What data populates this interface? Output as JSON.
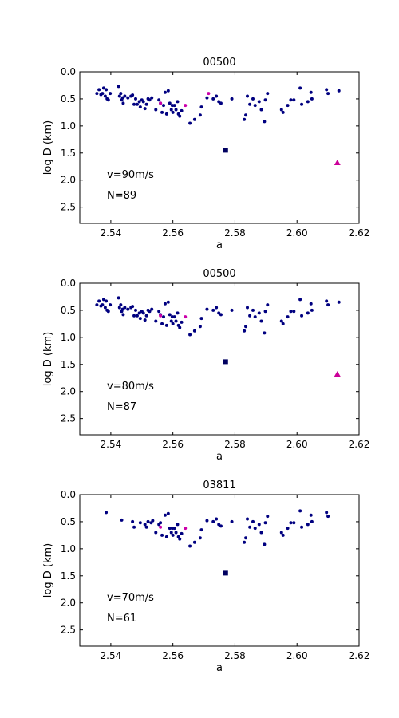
{
  "chart_data": [
    {
      "type": "scatter",
      "title": "00500",
      "xlabel": "a",
      "ylabel": "log D (km)",
      "xlim": [
        2.53,
        2.62
      ],
      "ylim": [
        0.0,
        2.8
      ],
      "y_inverted": true,
      "xticks": [
        "2.54",
        "2.56",
        "2.58",
        "2.60",
        "2.62"
      ],
      "yticks": [
        "0.0",
        "0.5",
        "1.0",
        "1.5",
        "2.0",
        "2.5"
      ],
      "annotations": [
        "v=90m/s",
        "N=89"
      ],
      "colors": {
        "members": "#000080",
        "highlight": "#cc00aa",
        "parent": "#000060",
        "outlier": "#cc0099"
      },
      "members": [
        [
          2.5355,
          0.4
        ],
        [
          2.5362,
          0.33
        ],
        [
          2.5368,
          0.42
        ],
        [
          2.5373,
          0.4
        ],
        [
          2.5377,
          0.3
        ],
        [
          2.5382,
          0.45
        ],
        [
          2.5385,
          0.33
        ],
        [
          2.5388,
          0.5
        ],
        [
          2.5392,
          0.52
        ],
        [
          2.5398,
          0.4
        ],
        [
          2.5425,
          0.27
        ],
        [
          2.5428,
          0.45
        ],
        [
          2.5432,
          0.4
        ],
        [
          2.5435,
          0.52
        ],
        [
          2.5438,
          0.48
        ],
        [
          2.544,
          0.58
        ],
        [
          2.5445,
          0.45
        ],
        [
          2.5455,
          0.48
        ],
        [
          2.5465,
          0.45
        ],
        [
          2.547,
          0.43
        ],
        [
          2.5475,
          0.6
        ],
        [
          2.548,
          0.5
        ],
        [
          2.5485,
          0.6
        ],
        [
          2.5492,
          0.55
        ],
        [
          2.5495,
          0.65
        ],
        [
          2.55,
          0.52
        ],
        [
          2.5505,
          0.55
        ],
        [
          2.551,
          0.68
        ],
        [
          2.5515,
          0.6
        ],
        [
          2.552,
          0.5
        ],
        [
          2.5525,
          0.52
        ],
        [
          2.5532,
          0.48
        ],
        [
          2.5545,
          0.7
        ],
        [
          2.5555,
          0.52
        ],
        [
          2.556,
          0.58
        ],
        [
          2.5565,
          0.75
        ],
        [
          2.557,
          0.62
        ],
        [
          2.5575,
          0.38
        ],
        [
          2.558,
          0.78
        ],
        [
          2.5585,
          0.35
        ],
        [
          2.559,
          0.58
        ],
        [
          2.5595,
          0.7
        ],
        [
          2.5598,
          0.62
        ],
        [
          2.56,
          0.75
        ],
        [
          2.5605,
          0.62
        ],
        [
          2.561,
          0.7
        ],
        [
          2.5615,
          0.55
        ],
        [
          2.5618,
          0.78
        ],
        [
          2.5622,
          0.82
        ],
        [
          2.5628,
          0.72
        ],
        [
          2.5655,
          0.95
        ],
        [
          2.567,
          0.88
        ],
        [
          2.5688,
          0.8
        ],
        [
          2.5692,
          0.65
        ],
        [
          2.571,
          0.48
        ],
        [
          2.573,
          0.5
        ],
        [
          2.574,
          0.45
        ],
        [
          2.5748,
          0.55
        ],
        [
          2.5755,
          0.58
        ],
        [
          2.579,
          0.5
        ],
        [
          2.583,
          0.88
        ],
        [
          2.5835,
          0.8
        ],
        [
          2.584,
          0.45
        ],
        [
          2.5848,
          0.6
        ],
        [
          2.5858,
          0.5
        ],
        [
          2.5865,
          0.62
        ],
        [
          2.5878,
          0.55
        ],
        [
          2.5885,
          0.7
        ],
        [
          2.5895,
          0.92
        ],
        [
          2.5898,
          0.52
        ],
        [
          2.5905,
          0.4
        ],
        [
          2.595,
          0.7
        ],
        [
          2.5955,
          0.75
        ],
        [
          2.597,
          0.62
        ],
        [
          2.598,
          0.52
        ],
        [
          2.599,
          0.52
        ],
        [
          2.601,
          0.3
        ],
        [
          2.6015,
          0.6
        ],
        [
          2.6035,
          0.55
        ],
        [
          2.6045,
          0.38
        ],
        [
          2.6048,
          0.5
        ],
        [
          2.6095,
          0.33
        ],
        [
          2.61,
          0.4
        ],
        [
          2.6135,
          0.35
        ]
      ],
      "highlights": [
        [
          2.556,
          0.58
        ],
        [
          2.564,
          0.62
        ],
        [
          2.5715,
          0.4
        ]
      ],
      "parent": [
        2.577,
        1.45
      ],
      "outlier": [
        2.613,
        1.68
      ]
    },
    {
      "type": "scatter",
      "title": "00500",
      "xlabel": "a",
      "ylabel": "log D (km)",
      "xlim": [
        2.53,
        2.62
      ],
      "ylim": [
        0.0,
        2.8
      ],
      "y_inverted": true,
      "xticks": [
        "2.54",
        "2.56",
        "2.58",
        "2.60",
        "2.62"
      ],
      "yticks": [
        "0.0",
        "0.5",
        "1.0",
        "1.5",
        "2.0",
        "2.5"
      ],
      "annotations": [
        "v=80m/s",
        "N=87"
      ],
      "colors": {
        "members": "#000080",
        "highlight": "#cc00aa",
        "parent": "#000060",
        "outlier": "#cc0099"
      },
      "members": [
        [
          2.5355,
          0.4
        ],
        [
          2.5362,
          0.33
        ],
        [
          2.5368,
          0.42
        ],
        [
          2.5373,
          0.4
        ],
        [
          2.5377,
          0.3
        ],
        [
          2.5382,
          0.45
        ],
        [
          2.5385,
          0.33
        ],
        [
          2.5388,
          0.5
        ],
        [
          2.5392,
          0.52
        ],
        [
          2.5398,
          0.4
        ],
        [
          2.5425,
          0.27
        ],
        [
          2.5428,
          0.45
        ],
        [
          2.5432,
          0.4
        ],
        [
          2.5435,
          0.52
        ],
        [
          2.5438,
          0.48
        ],
        [
          2.544,
          0.58
        ],
        [
          2.5445,
          0.45
        ],
        [
          2.5455,
          0.48
        ],
        [
          2.5465,
          0.45
        ],
        [
          2.547,
          0.43
        ],
        [
          2.5475,
          0.6
        ],
        [
          2.548,
          0.5
        ],
        [
          2.5485,
          0.6
        ],
        [
          2.5492,
          0.55
        ],
        [
          2.5495,
          0.65
        ],
        [
          2.55,
          0.52
        ],
        [
          2.5505,
          0.55
        ],
        [
          2.551,
          0.68
        ],
        [
          2.5515,
          0.6
        ],
        [
          2.552,
          0.5
        ],
        [
          2.5525,
          0.52
        ],
        [
          2.5532,
          0.48
        ],
        [
          2.5545,
          0.7
        ],
        [
          2.5555,
          0.52
        ],
        [
          2.556,
          0.58
        ],
        [
          2.5565,
          0.75
        ],
        [
          2.557,
          0.62
        ],
        [
          2.5575,
          0.38
        ],
        [
          2.558,
          0.78
        ],
        [
          2.5585,
          0.35
        ],
        [
          2.559,
          0.58
        ],
        [
          2.5595,
          0.7
        ],
        [
          2.5598,
          0.62
        ],
        [
          2.56,
          0.75
        ],
        [
          2.5605,
          0.62
        ],
        [
          2.561,
          0.7
        ],
        [
          2.5615,
          0.55
        ],
        [
          2.5618,
          0.78
        ],
        [
          2.5622,
          0.82
        ],
        [
          2.5628,
          0.72
        ],
        [
          2.5655,
          0.95
        ],
        [
          2.567,
          0.88
        ],
        [
          2.5688,
          0.8
        ],
        [
          2.5692,
          0.65
        ],
        [
          2.571,
          0.48
        ],
        [
          2.573,
          0.5
        ],
        [
          2.574,
          0.45
        ],
        [
          2.5748,
          0.55
        ],
        [
          2.5755,
          0.58
        ],
        [
          2.579,
          0.5
        ],
        [
          2.583,
          0.88
        ],
        [
          2.5835,
          0.8
        ],
        [
          2.584,
          0.45
        ],
        [
          2.5848,
          0.6
        ],
        [
          2.5858,
          0.5
        ],
        [
          2.5865,
          0.62
        ],
        [
          2.5878,
          0.55
        ],
        [
          2.5885,
          0.7
        ],
        [
          2.5895,
          0.92
        ],
        [
          2.5898,
          0.52
        ],
        [
          2.5905,
          0.4
        ],
        [
          2.595,
          0.7
        ],
        [
          2.5955,
          0.75
        ],
        [
          2.597,
          0.62
        ],
        [
          2.598,
          0.52
        ],
        [
          2.599,
          0.52
        ],
        [
          2.601,
          0.3
        ],
        [
          2.6015,
          0.6
        ],
        [
          2.6035,
          0.55
        ],
        [
          2.6045,
          0.38
        ],
        [
          2.6048,
          0.5
        ],
        [
          2.6095,
          0.33
        ],
        [
          2.61,
          0.4
        ],
        [
          2.6135,
          0.35
        ]
      ],
      "highlights": [
        [
          2.556,
          0.6
        ],
        [
          2.564,
          0.62
        ]
      ],
      "parent": [
        2.577,
        1.45
      ],
      "outlier": [
        2.613,
        1.68
      ]
    },
    {
      "type": "scatter",
      "title": "03811",
      "xlabel": "a",
      "ylabel": "log D (km)",
      "xlim": [
        2.53,
        2.62
      ],
      "ylim": [
        0.0,
        2.8
      ],
      "y_inverted": true,
      "xticks": [
        "2.54",
        "2.56",
        "2.58",
        "2.60",
        "2.62"
      ],
      "yticks": [
        "0.0",
        "0.5",
        "1.0",
        "1.5",
        "2.0",
        "2.5"
      ],
      "annotations": [
        "v=70m/s",
        "N=61"
      ],
      "colors": {
        "members": "#000080",
        "highlight": "#cc00aa",
        "parent": "#000060",
        "outlier": "#cc0099"
      },
      "members": [
        [
          2.5385,
          0.33
        ],
        [
          2.5435,
          0.47
        ],
        [
          2.547,
          0.5
        ],
        [
          2.5475,
          0.6
        ],
        [
          2.5495,
          0.52
        ],
        [
          2.551,
          0.55
        ],
        [
          2.5515,
          0.6
        ],
        [
          2.552,
          0.5
        ],
        [
          2.553,
          0.52
        ],
        [
          2.5535,
          0.48
        ],
        [
          2.5545,
          0.7
        ],
        [
          2.5555,
          0.55
        ],
        [
          2.556,
          0.52
        ],
        [
          2.5565,
          0.75
        ],
        [
          2.5575,
          0.38
        ],
        [
          2.558,
          0.78
        ],
        [
          2.5585,
          0.35
        ],
        [
          2.559,
          0.62
        ],
        [
          2.5595,
          0.7
        ],
        [
          2.5598,
          0.62
        ],
        [
          2.56,
          0.75
        ],
        [
          2.5605,
          0.62
        ],
        [
          2.561,
          0.7
        ],
        [
          2.5615,
          0.55
        ],
        [
          2.5618,
          0.78
        ],
        [
          2.5622,
          0.82
        ],
        [
          2.5628,
          0.72
        ],
        [
          2.5655,
          0.95
        ],
        [
          2.567,
          0.88
        ],
        [
          2.5688,
          0.8
        ],
        [
          2.5692,
          0.65
        ],
        [
          2.571,
          0.48
        ],
        [
          2.573,
          0.5
        ],
        [
          2.574,
          0.45
        ],
        [
          2.5748,
          0.55
        ],
        [
          2.5755,
          0.58
        ],
        [
          2.579,
          0.5
        ],
        [
          2.583,
          0.88
        ],
        [
          2.5835,
          0.8
        ],
        [
          2.584,
          0.45
        ],
        [
          2.5848,
          0.6
        ],
        [
          2.5858,
          0.5
        ],
        [
          2.5865,
          0.62
        ],
        [
          2.5878,
          0.55
        ],
        [
          2.5885,
          0.7
        ],
        [
          2.5895,
          0.92
        ],
        [
          2.5898,
          0.52
        ],
        [
          2.5905,
          0.4
        ],
        [
          2.595,
          0.7
        ],
        [
          2.5955,
          0.75
        ],
        [
          2.597,
          0.62
        ],
        [
          2.598,
          0.52
        ],
        [
          2.599,
          0.52
        ],
        [
          2.601,
          0.3
        ],
        [
          2.6015,
          0.6
        ],
        [
          2.6035,
          0.55
        ],
        [
          2.6045,
          0.38
        ],
        [
          2.6048,
          0.5
        ],
        [
          2.6095,
          0.33
        ],
        [
          2.61,
          0.4
        ]
      ],
      "highlights": [
        [
          2.556,
          0.6
        ],
        [
          2.564,
          0.62
        ]
      ],
      "parent": [
        2.577,
        1.45
      ],
      "outlier": null
    }
  ]
}
